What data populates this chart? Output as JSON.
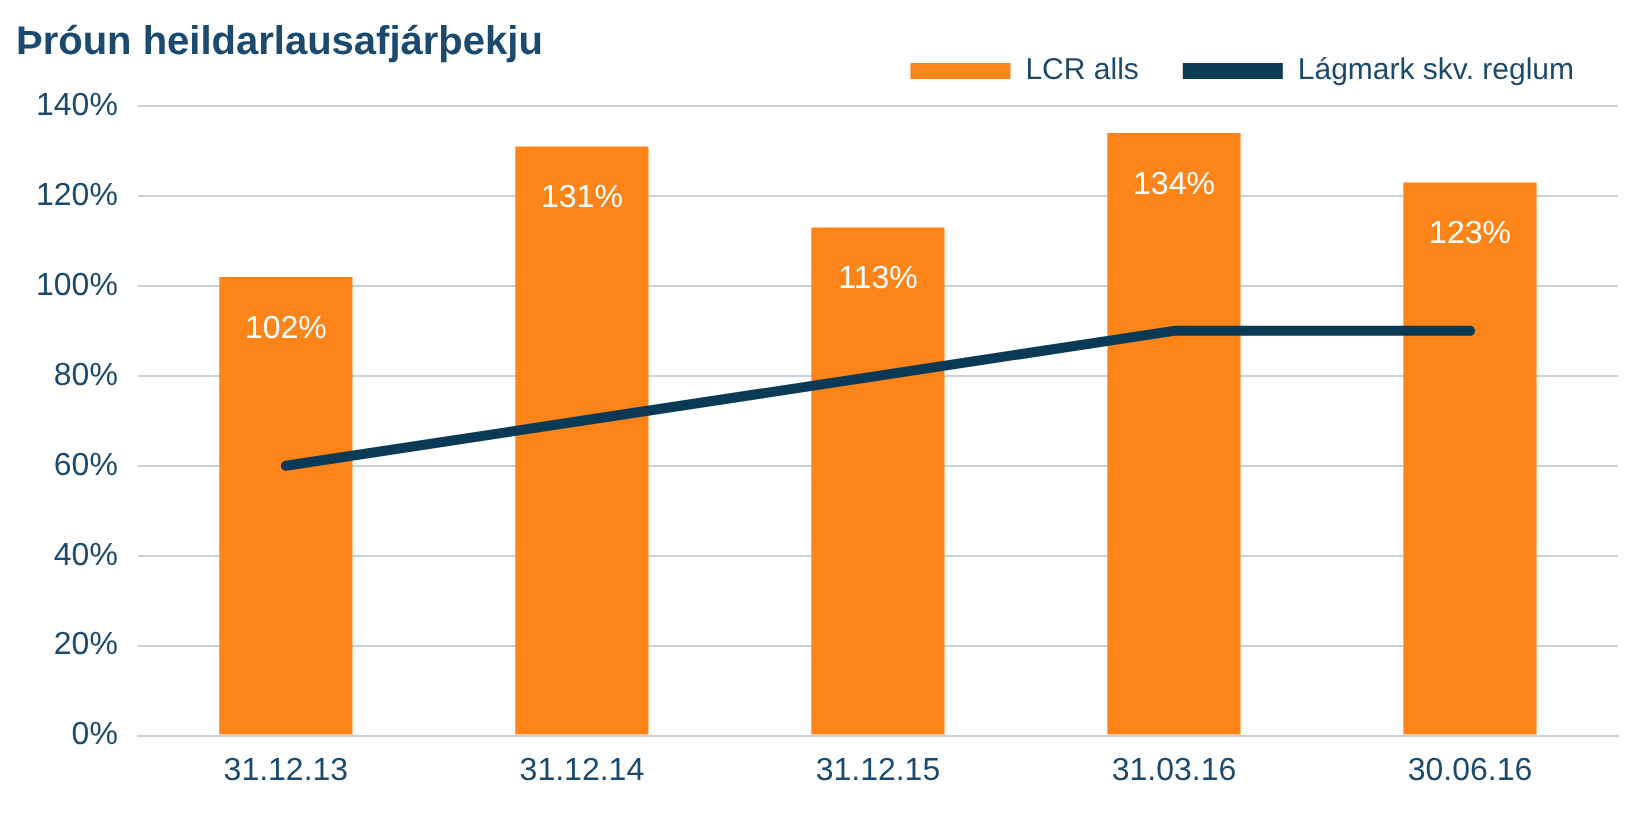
{
  "chart_data": {
    "type": "bar",
    "title": "Þróun heildarlausafjárþekju",
    "categories": [
      "31.12.13",
      "31.12.14",
      "31.12.15",
      "31.03.16",
      "30.06.16"
    ],
    "series": [
      {
        "name": "LCR alls",
        "color": "#fd8419",
        "values": [
          102,
          131,
          113,
          134,
          123
        ],
        "value_labels": [
          "102%",
          "131%",
          "113%",
          "134%",
          "123%"
        ]
      },
      {
        "name": "Lágmark skv. reglum",
        "type": "line",
        "color": "#0b3a57",
        "values": [
          60,
          70,
          80,
          90,
          90
        ]
      }
    ],
    "ylim": [
      0,
      140
    ],
    "yticks": [
      {
        "value": 0,
        "label": "0%"
      },
      {
        "value": 20,
        "label": "20%"
      },
      {
        "value": 40,
        "label": "40%"
      },
      {
        "value": 60,
        "label": "60%"
      },
      {
        "value": 80,
        "label": "80%"
      },
      {
        "value": 100,
        "label": "100%"
      },
      {
        "value": 120,
        "label": "120%"
      },
      {
        "value": 140,
        "label": "140%"
      }
    ],
    "grid": "y",
    "legend": "top right",
    "marker": "none"
  }
}
